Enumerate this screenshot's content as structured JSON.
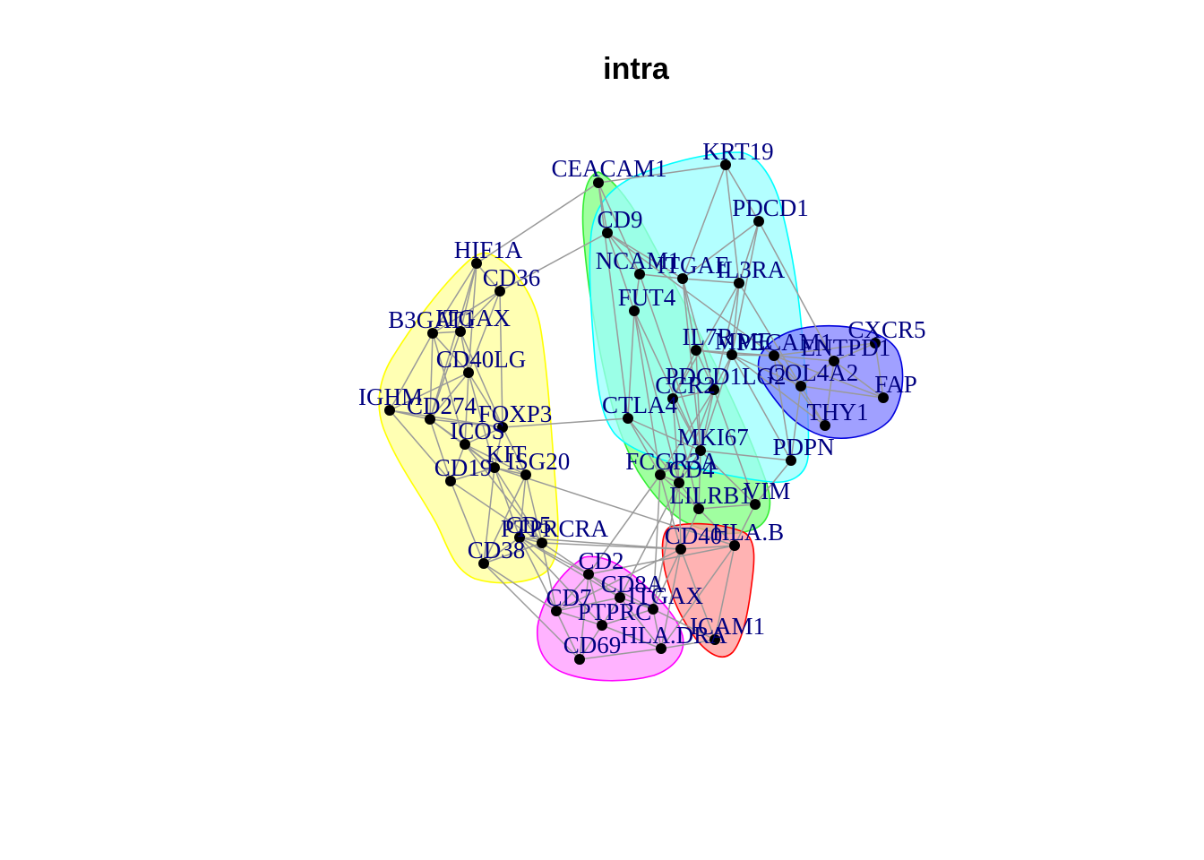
{
  "title": "intra",
  "colors": {
    "edge": "#9a9a9a",
    "node": "#000000",
    "label": "#000080",
    "groups": {
      "yellow": {
        "fill": "#ffff99",
        "stroke": "#ffff00"
      },
      "green": {
        "fill": "#80ff80",
        "stroke": "#33ee33"
      },
      "cyan": {
        "fill": "#99ffff",
        "stroke": "#00ffff"
      },
      "blue": {
        "fill": "#8080ff",
        "stroke": "#0000dd"
      },
      "magenta": {
        "fill": "#ff99ff",
        "stroke": "#ff00ff"
      },
      "red": {
        "fill": "#ff9999",
        "stroke": "#ff0000"
      }
    }
  },
  "groups": [
    {
      "name": "yellow",
      "members": [
        "HIF1A",
        "CD36",
        "B3GAT1",
        "ITGAX_C",
        "CD40LG",
        "IGHM",
        "CD274",
        "FOXP3",
        "ICOS",
        "KIT",
        "ISG20",
        "CD19",
        "PTPRCRA",
        "CD5",
        "CD38"
      ]
    },
    {
      "name": "green",
      "members": [
        "CEACAM1",
        "CD9",
        "NCAM1",
        "FUT4",
        "CTLA4",
        "PDCD1LG2",
        "FCGR3A",
        "CD4",
        "LILRB1",
        "VIM"
      ]
    },
    {
      "name": "cyan",
      "members": [
        "KRT19",
        "PDCD1",
        "ITGAE",
        "IL3RA",
        "IL7R",
        "MME",
        "PECAM1",
        "CCR2",
        "MKI67",
        "PDPN"
      ]
    },
    {
      "name": "blue",
      "members": [
        "CXCR5",
        "ENTPD1",
        "COL4A2",
        "FAP",
        "THY1"
      ]
    },
    {
      "name": "magenta",
      "members": [
        "CD2",
        "CD8A",
        "CD7",
        "PTPRC",
        "CD69",
        "ITGAX"
      ]
    },
    {
      "name": "red",
      "members": [
        "CD40",
        "HLA.B",
        "ICAM1",
        "HLA.DRA"
      ]
    }
  ],
  "nodes": [
    {
      "id": "CEACAM1",
      "label": "CEACAM1"
    },
    {
      "id": "KRT19",
      "label": "KRT19"
    },
    {
      "id": "CD9",
      "label": "CD9"
    },
    {
      "id": "PDCD1",
      "label": "PDCD1"
    },
    {
      "id": "HIF1A",
      "label": "HIF1A"
    },
    {
      "id": "NCAM1",
      "label": "NCAM1"
    },
    {
      "id": "ITGAE",
      "label": "ITGAE"
    },
    {
      "id": "IL3RA",
      "label": "IL3RA"
    },
    {
      "id": "CD36",
      "label": "CD36"
    },
    {
      "id": "FUT4",
      "label": "FUT4"
    },
    {
      "id": "B3GAT1",
      "label": "B3GAT1"
    },
    {
      "id": "ITGAX_C",
      "label": "ITGAX"
    },
    {
      "id": "IL7R",
      "label": "IL7R"
    },
    {
      "id": "MME",
      "label": "MME"
    },
    {
      "id": "PECAM1",
      "label": "PECAM1"
    },
    {
      "id": "ENTPD1",
      "label": "ENTPD1"
    },
    {
      "id": "CXCR5",
      "label": "CXCR5"
    },
    {
      "id": "CD40LG",
      "label": "CD40LG"
    },
    {
      "id": "COL4A2",
      "label": "COL4A2"
    },
    {
      "id": "PDCD1LG2",
      "label": "PDCD1LG2"
    },
    {
      "id": "CCR2",
      "label": "CCR2"
    },
    {
      "id": "FAP",
      "label": "FAP"
    },
    {
      "id": "IGHM",
      "label": "IGHM"
    },
    {
      "id": "CD274",
      "label": "CD274"
    },
    {
      "id": "CTLA4",
      "label": "CTLA4"
    },
    {
      "id": "FOXP3",
      "label": "FOXP3"
    },
    {
      "id": "THY1",
      "label": "THY1"
    },
    {
      "id": "ICOS",
      "label": "ICOS"
    },
    {
      "id": "MKI67",
      "label": "MKI67"
    },
    {
      "id": "PDPN",
      "label": "PDPN"
    },
    {
      "id": "KIT",
      "label": "KIT"
    },
    {
      "id": "ISG20",
      "label": "ISG20"
    },
    {
      "id": "FCGR3A",
      "label": "FCGR3A"
    },
    {
      "id": "CD4",
      "label": "CD4"
    },
    {
      "id": "CD19",
      "label": "CD19"
    },
    {
      "id": "LILRB1",
      "label": "LILRB1"
    },
    {
      "id": "VIM",
      "label": "VIM"
    },
    {
      "id": "PTPRCRA",
      "label": "PTPRCRA"
    },
    {
      "id": "CD5",
      "label": "CD5"
    },
    {
      "id": "CD40",
      "label": "CD40"
    },
    {
      "id": "HLA.B",
      "label": "HLA.B"
    },
    {
      "id": "CD38",
      "label": "CD38"
    },
    {
      "id": "CD2",
      "label": "CD2"
    },
    {
      "id": "CD8A",
      "label": "CD8A"
    },
    {
      "id": "ITGAX",
      "label": "ITGAX"
    },
    {
      "id": "CD7",
      "label": "CD7"
    },
    {
      "id": "PTPRC",
      "label": "PTPRC"
    },
    {
      "id": "ICAM1",
      "label": "ICAM1"
    },
    {
      "id": "HLA.DRA",
      "label": "HLA.DRA"
    },
    {
      "id": "CD69",
      "label": "CD69"
    }
  ],
  "edges": [
    [
      "CEACAM1",
      "KRT19"
    ],
    [
      "CEACAM1",
      "CD9"
    ],
    [
      "CEACAM1",
      "HIF1A"
    ],
    [
      "CEACAM1",
      "NCAM1"
    ],
    [
      "CEACAM1",
      "CTLA4"
    ],
    [
      "KRT19",
      "PDCD1"
    ],
    [
      "KRT19",
      "ITGAE"
    ],
    [
      "KRT19",
      "IL3RA"
    ],
    [
      "PDCD1",
      "IL3RA"
    ],
    [
      "PDCD1",
      "ENTPD1"
    ],
    [
      "PDCD1",
      "ITGAE"
    ],
    [
      "PDCD1",
      "MME"
    ],
    [
      "CD9",
      "NCAM1"
    ],
    [
      "CD9",
      "ITGAE"
    ],
    [
      "CD9",
      "CD36"
    ],
    [
      "CD9",
      "FUT4"
    ],
    [
      "CD9",
      "PECAM1"
    ],
    [
      "NCAM1",
      "ITGAE"
    ],
    [
      "NCAM1",
      "FUT4"
    ],
    [
      "NCAM1",
      "MKI67"
    ],
    [
      "ITGAE",
      "IL3RA"
    ],
    [
      "ITGAE",
      "IL7R"
    ],
    [
      "ITGAE",
      "MKI67"
    ],
    [
      "ITGAE",
      "PDCD1LG2"
    ],
    [
      "IL3RA",
      "MME"
    ],
    [
      "IL3RA",
      "PDCD1LG2"
    ],
    [
      "IL3RA",
      "CCR2"
    ],
    [
      "IL3RA",
      "COL4A2"
    ],
    [
      "FUT4",
      "CTLA4"
    ],
    [
      "FUT4",
      "MKI67"
    ],
    [
      "FUT4",
      "FCGR3A"
    ],
    [
      "FUT4",
      "CD4"
    ],
    [
      "IL7R",
      "MME"
    ],
    [
      "IL7R",
      "PECAM1"
    ],
    [
      "IL7R",
      "CCR2"
    ],
    [
      "IL7R",
      "MKI67"
    ],
    [
      "IL7R",
      "PDCD1LG2"
    ],
    [
      "MME",
      "PECAM1"
    ],
    [
      "MME",
      "PDCD1LG2"
    ],
    [
      "MME",
      "COL4A2"
    ],
    [
      "MME",
      "MKI67"
    ],
    [
      "MME",
      "PDPN"
    ],
    [
      "MME",
      "THY1"
    ],
    [
      "PECAM1",
      "ENTPD1"
    ],
    [
      "PECAM1",
      "COL4A2"
    ],
    [
      "PECAM1",
      "THY1"
    ],
    [
      "PECAM1",
      "CXCR5"
    ],
    [
      "PECAM1",
      "FAP"
    ],
    [
      "PECAM1",
      "PDPN"
    ],
    [
      "ENTPD1",
      "CXCR5"
    ],
    [
      "ENTPD1",
      "COL4A2"
    ],
    [
      "ENTPD1",
      "FAP"
    ],
    [
      "ENTPD1",
      "THY1"
    ],
    [
      "COL4A2",
      "FAP"
    ],
    [
      "COL4A2",
      "THY1"
    ],
    [
      "COL4A2",
      "PDPN"
    ],
    [
      "CXCR5",
      "FAP"
    ],
    [
      "PDCD1LG2",
      "CCR2"
    ],
    [
      "PDCD1LG2",
      "MKI67"
    ],
    [
      "PDCD1LG2",
      "FCGR3A"
    ],
    [
      "PDCD1LG2",
      "CD4"
    ],
    [
      "PDCD1LG2",
      "VIM"
    ],
    [
      "CCR2",
      "MKI67"
    ],
    [
      "CCR2",
      "CD4"
    ],
    [
      "CCR2",
      "LILRB1"
    ],
    [
      "MKI67",
      "PDPN"
    ],
    [
      "MKI67",
      "VIM"
    ],
    [
      "MKI67",
      "LILRB1"
    ],
    [
      "MKI67",
      "CD4"
    ],
    [
      "MKI67",
      "FCGR3A"
    ],
    [
      "PDPN",
      "VIM"
    ],
    [
      "VIM",
      "LILRB1"
    ],
    [
      "VIM",
      "HLA.B"
    ],
    [
      "LILRB1",
      "CD4"
    ],
    [
      "LILRB1",
      "FCGR3A"
    ],
    [
      "LILRB1",
      "HLA.B"
    ],
    [
      "LILRB1",
      "CD40"
    ],
    [
      "FCGR3A",
      "CD4"
    ],
    [
      "FCGR3A",
      "CD40"
    ],
    [
      "FCGR3A",
      "ITGAX"
    ],
    [
      "FCGR3A",
      "CD2"
    ],
    [
      "CD4",
      "CD8A"
    ],
    [
      "CD4",
      "ITGAX"
    ],
    [
      "CD4",
      "CD40"
    ],
    [
      "CTLA4",
      "FOXP3"
    ],
    [
      "CTLA4",
      "FCGR3A"
    ],
    [
      "CTLA4",
      "CD4"
    ],
    [
      "CTLA4",
      "MKI67"
    ],
    [
      "HIF1A",
      "CD36"
    ],
    [
      "HIF1A",
      "B3GAT1"
    ],
    [
      "HIF1A",
      "ITGAX_C"
    ],
    [
      "HIF1A",
      "CD40LG"
    ],
    [
      "HIF1A",
      "CD274"
    ],
    [
      "CD36",
      "B3GAT1"
    ],
    [
      "CD36",
      "ITGAX_C"
    ],
    [
      "CD36",
      "CD40LG"
    ],
    [
      "CD36",
      "FOXP3"
    ],
    [
      "B3GAT1",
      "ITGAX_C"
    ],
    [
      "B3GAT1",
      "CD40LG"
    ],
    [
      "B3GAT1",
      "IGHM"
    ],
    [
      "B3GAT1",
      "CD274"
    ],
    [
      "B3GAT1",
      "ICOS"
    ],
    [
      "ITGAX_C",
      "CD40LG"
    ],
    [
      "ITGAX_C",
      "CD274"
    ],
    [
      "ITGAX_C",
      "FOXP3"
    ],
    [
      "CD40LG",
      "CD274"
    ],
    [
      "CD40LG",
      "FOXP3"
    ],
    [
      "CD40LG",
      "ICOS"
    ],
    [
      "CD40LG",
      "KIT"
    ],
    [
      "CD40LG",
      "IGHM"
    ],
    [
      "IGHM",
      "CD274"
    ],
    [
      "IGHM",
      "CD19"
    ],
    [
      "IGHM",
      "FOXP3"
    ],
    [
      "CD274",
      "FOXP3"
    ],
    [
      "CD274",
      "ICOS"
    ],
    [
      "CD274",
      "CD19"
    ],
    [
      "CD274",
      "KIT"
    ],
    [
      "FOXP3",
      "ICOS"
    ],
    [
      "FOXP3",
      "KIT"
    ],
    [
      "FOXP3",
      "ISG20"
    ],
    [
      "ICOS",
      "KIT"
    ],
    [
      "ICOS",
      "CD19"
    ],
    [
      "ICOS",
      "ISG20"
    ],
    [
      "ICOS",
      "CD5"
    ],
    [
      "KIT",
      "ISG20"
    ],
    [
      "KIT",
      "CD19"
    ],
    [
      "KIT",
      "CD5"
    ],
    [
      "KIT",
      "PTPRCRA"
    ],
    [
      "KIT",
      "CD38"
    ],
    [
      "KIT",
      "HLA.B"
    ],
    [
      "ISG20",
      "CD5"
    ],
    [
      "ISG20",
      "CD38"
    ],
    [
      "ISG20",
      "PTPRCRA"
    ],
    [
      "CD19",
      "CD38"
    ],
    [
      "CD19",
      "CD5"
    ],
    [
      "CD5",
      "PTPRCRA"
    ],
    [
      "CD5",
      "CD38"
    ],
    [
      "CD5",
      "CD2"
    ],
    [
      "CD5",
      "CD7"
    ],
    [
      "CD5",
      "CD40"
    ],
    [
      "PTPRCRA",
      "CD38"
    ],
    [
      "PTPRCRA",
      "CD2"
    ],
    [
      "PTPRCRA",
      "CD8A"
    ],
    [
      "PTPRCRA",
      "CD7"
    ],
    [
      "PTPRCRA",
      "PTPRC"
    ],
    [
      "PTPRCRA",
      "CD40"
    ],
    [
      "CD38",
      "CD7"
    ],
    [
      "CD38",
      "CD69"
    ],
    [
      "CD2",
      "CD8A"
    ],
    [
      "CD2",
      "CD7"
    ],
    [
      "CD2",
      "PTPRC"
    ],
    [
      "CD2",
      "ITGAX"
    ],
    [
      "CD2",
      "CD69"
    ],
    [
      "CD8A",
      "ITGAX"
    ],
    [
      "CD8A",
      "PTPRC"
    ],
    [
      "CD8A",
      "CD7"
    ],
    [
      "CD8A",
      "HLA.DRA"
    ],
    [
      "CD7",
      "PTPRC"
    ],
    [
      "CD7",
      "CD69"
    ],
    [
      "PTPRC",
      "ITGAX"
    ],
    [
      "PTPRC",
      "CD69"
    ],
    [
      "PTPRC",
      "HLA.DRA"
    ],
    [
      "ITGAX",
      "HLA.DRA"
    ],
    [
      "ITGAX",
      "CD40"
    ],
    [
      "ITGAX",
      "ICAM1"
    ],
    [
      "CD69",
      "HLA.DRA"
    ],
    [
      "CD40",
      "HLA.B"
    ],
    [
      "CD40",
      "ICAM1"
    ],
    [
      "CD40",
      "HLA.DRA"
    ],
    [
      "HLA.B",
      "ICAM1"
    ],
    [
      "HLA.B",
      "HLA.DRA"
    ],
    [
      "ICAM1",
      "HLA.DRA"
    ],
    [
      "CD40",
      "CD7"
    ],
    [
      "HLA.B",
      "CD2"
    ]
  ]
}
